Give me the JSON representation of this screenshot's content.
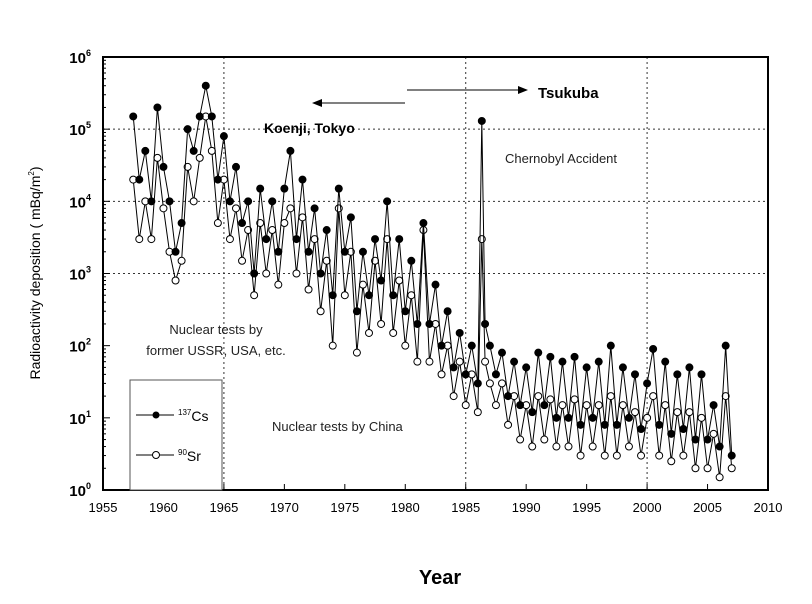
{
  "chart_data": {
    "type": "line",
    "title": "",
    "xlabel": "Year",
    "ylabel": "Radioactivity deposition ( mBq/m²)",
    "ylabel_main": "Radioactivity deposition ( mBq/m",
    "ylabel_sup": "2",
    "ylabel_end": ")",
    "xlim": [
      1955,
      2010
    ],
    "ylim": [
      1,
      1000000
    ],
    "yscale": "log",
    "xticks": [
      "1955",
      "1960",
      "1965",
      "1970",
      "1975",
      "1980",
      "1985",
      "1990",
      "1995",
      "2000",
      "2005",
      "2010"
    ],
    "yticks": [
      {
        "base": "10",
        "exp": "0"
      },
      {
        "base": "10",
        "exp": "1"
      },
      {
        "base": "10",
        "exp": "2"
      },
      {
        "base": "10",
        "exp": "3"
      },
      {
        "base": "10",
        "exp": "4"
      },
      {
        "base": "10",
        "exp": "5"
      },
      {
        "base": "10",
        "exp": "6"
      }
    ],
    "grid_x": [
      1965,
      1985,
      2000
    ],
    "grid_y": [
      1000,
      10000,
      100000
    ],
    "legend": {
      "placement": "bottom-left",
      "entries": [
        {
          "sup": "137",
          "name": "Cs"
        },
        {
          "sup": "90",
          "name": "Sr"
        }
      ]
    },
    "annotations": {
      "tsukuba": "Tsukuba",
      "koenji": "Koenji, Tokyo",
      "chernobyl": "Chernobyl Accident",
      "ussr_line1": "Nuclear tests by",
      "ussr_line2": "former USSR, USA, etc.",
      "china": "Nuclear tests by China"
    },
    "x": [
      1957.5,
      1958,
      1958.5,
      1959,
      1959.5,
      1960,
      1960.5,
      1961,
      1961.5,
      1962,
      1962.5,
      1963,
      1963.5,
      1964,
      1964.5,
      1965,
      1965.5,
      1966,
      1966.5,
      1967,
      1967.5,
      1968,
      1968.5,
      1969,
      1969.5,
      1970,
      1970.5,
      1971,
      1971.5,
      1972,
      1972.5,
      1973,
      1973.5,
      1974,
      1974.5,
      1975,
      1975.5,
      1976,
      1976.5,
      1977,
      1977.5,
      1978,
      1978.5,
      1979,
      1979.5,
      1980,
      1980.5,
      1981,
      1981.5,
      1982,
      1982.5,
      1983,
      1983.5,
      1984,
      1984.5,
      1985,
      1985.5,
      1986,
      1986.33,
      1986.6,
      1987,
      1987.5,
      1988,
      1988.5,
      1989,
      1989.5,
      1990,
      1990.5,
      1991,
      1991.5,
      1992,
      1992.5,
      1993,
      1993.5,
      1994,
      1994.5,
      1995,
      1995.5,
      1996,
      1996.5,
      1997,
      1997.5,
      1998,
      1998.5,
      1999,
      1999.5,
      2000,
      2000.5,
      2001,
      2001.5,
      2002,
      2002.5,
      2003,
      2003.5,
      2004,
      2004.5,
      2005,
      2005.5,
      2006,
      2006.5,
      2007
    ],
    "series": [
      {
        "name": "137Cs",
        "marker": "filled",
        "values": [
          150000,
          20000,
          50000,
          10000,
          200000,
          30000,
          10000,
          2000,
          5000,
          100000,
          50000,
          150000,
          400000,
          150000,
          20000,
          80000,
          10000,
          30000,
          5000,
          10000,
          1000,
          15000,
          3000,
          10000,
          2000,
          15000,
          50000,
          3000,
          20000,
          2000,
          8000,
          1000,
          4000,
          500,
          15000,
          2000,
          6000,
          300,
          2000,
          500,
          3000,
          800,
          10000,
          500,
          3000,
          300,
          1500,
          200,
          5000,
          200,
          700,
          100,
          300,
          50,
          150,
          40,
          100,
          30,
          130000,
          200,
          100,
          40,
          80,
          20,
          60,
          15,
          50,
          12,
          80,
          15,
          70,
          10,
          60,
          10,
          70,
          8,
          50,
          10,
          60,
          8,
          100,
          8,
          50,
          10,
          40,
          7,
          30,
          90,
          8,
          60,
          6,
          40,
          7,
          50,
          5,
          40,
          5,
          15,
          4,
          100,
          3
        ]
      },
      {
        "name": "90Sr",
        "marker": "open",
        "values": [
          20000,
          3000,
          10000,
          3000,
          40000,
          8000,
          2000,
          800,
          1500,
          30000,
          10000,
          40000,
          150000,
          50000,
          5000,
          20000,
          3000,
          8000,
          1500,
          4000,
          500,
          5000,
          1000,
          4000,
          700,
          5000,
          8000,
          1000,
          6000,
          600,
          3000,
          300,
          1500,
          100,
          8000,
          500,
          2000,
          80,
          700,
          150,
          1500,
          200,
          3000,
          150,
          800,
          100,
          500,
          60,
          4000,
          60,
          200,
          40,
          100,
          20,
          60,
          15,
          40,
          12,
          3000,
          60,
          30,
          15,
          30,
          8,
          20,
          5,
          15,
          4,
          20,
          5,
          18,
          4,
          15,
          4,
          18,
          3,
          15,
          4,
          15,
          3,
          20,
          3,
          15,
          4,
          12,
          3,
          10,
          20,
          3,
          15,
          2.5,
          12,
          3,
          12,
          2,
          10,
          2,
          6,
          1.5,
          20,
          2
        ]
      }
    ]
  }
}
